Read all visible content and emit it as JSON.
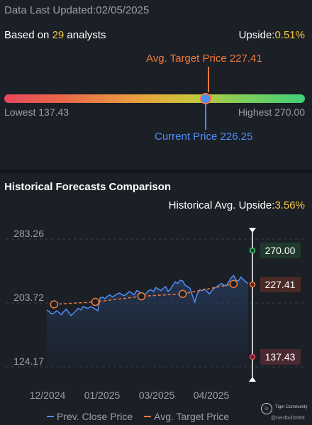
{
  "header": {
    "updated_prefix": "Data Last Updated:",
    "updated_date": "02/05/2025"
  },
  "summary": {
    "based_prefix": "Based on ",
    "analysts_count": "29",
    "based_suffix": " analysts",
    "upside_label": "Upside:",
    "upside_value": "0.51%"
  },
  "price_range": {
    "avg_target_label": "Avg. Target Price 227.41",
    "lowest_label": "Lowest 137.43",
    "highest_label": "Highest 270.00",
    "current_label": "Current Price 226.25",
    "low": 137.43,
    "high": 270.0,
    "current": 226.25,
    "avg_target": 227.41
  },
  "historical": {
    "title": "Historical Forecasts Comparison",
    "upside_label": "Historical Avg. Upside:",
    "upside_value": "3.56%"
  },
  "chart_data": {
    "type": "line",
    "y_ticks": [
      "283.26",
      "203.72",
      "124.17"
    ],
    "ylim": [
      124.17,
      283.26
    ],
    "x_ticks": [
      "12/2024",
      "01/2025",
      "03/2025",
      "04/2025"
    ],
    "series": [
      {
        "name": "Prev. Close Price",
        "color": "#4f8ef7",
        "values": [
          195,
          193,
          190,
          191,
          194,
          192,
          189,
          193,
          196,
          192,
          188,
          191,
          194,
          197,
          195,
          199,
          198,
          197,
          199,
          198,
          196,
          194,
          210,
          211,
          209,
          212,
          214,
          211,
          213,
          215,
          216,
          214,
          213,
          215,
          218,
          216,
          214,
          219,
          218,
          216,
          212,
          216,
          219,
          220,
          218,
          223,
          221,
          219,
          222,
          224,
          218,
          221,
          226,
          230,
          228,
          232,
          231,
          226,
          224,
          222,
          213,
          205,
          215,
          220,
          219,
          221,
          218,
          215,
          219,
          222,
          224,
          226,
          228,
          226,
          225,
          230,
          235,
          238,
          232,
          231,
          236,
          233,
          230,
          228
        ]
      },
      {
        "name": "Avg. Target Price",
        "color": "#f07a3b",
        "points": [
          202,
          205,
          212,
          215,
          227.41
        ],
        "point_index": [
          3,
          20,
          39,
          56,
          77
        ]
      }
    ],
    "markers": {
      "high": "270.00",
      "avg": "227.41",
      "low": "137.43"
    }
  },
  "legend": {
    "prev_close": "Prev. Close Price",
    "avg_target": "Avg. Target Price"
  },
  "brand": {
    "name": "Tiger Community",
    "user": "@nerdbull1669"
  }
}
